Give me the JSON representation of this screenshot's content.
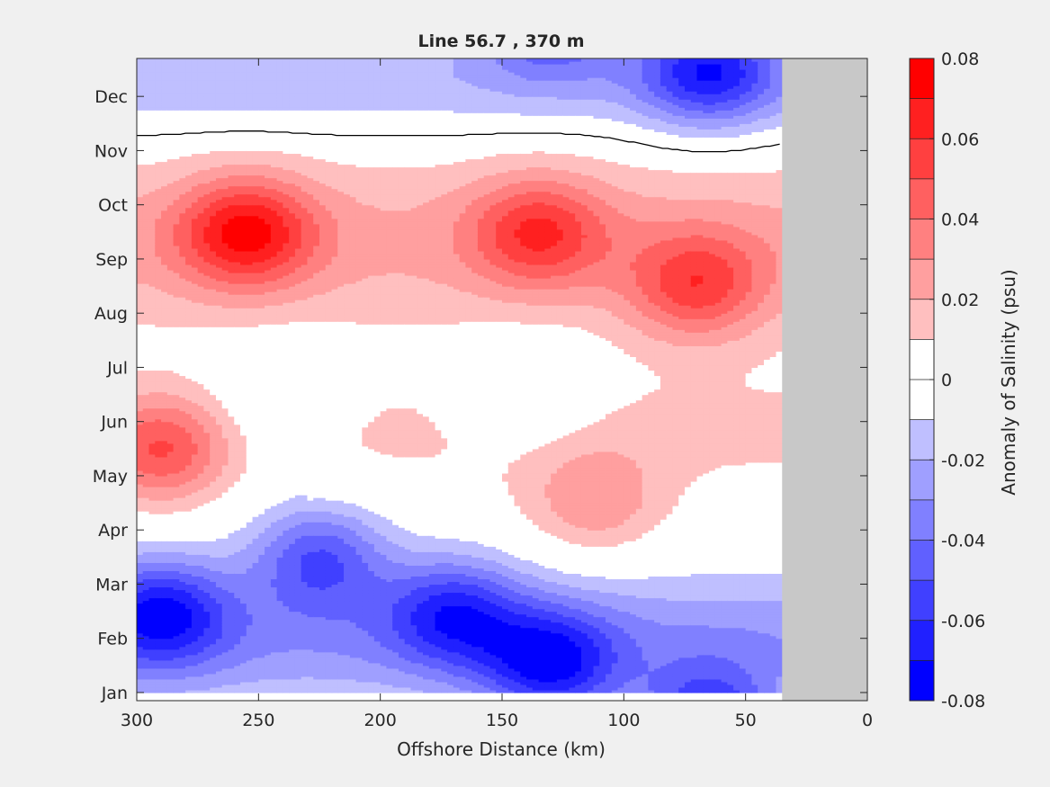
{
  "chart_data": {
    "type": "heatmap",
    "subtype": "filled-contour",
    "title": "Line 56.7 , 370 m",
    "xlabel": "Offshore Distance (km)",
    "colorbar_label": "Anomaly of Salinity (psu)",
    "x_ticks": [
      "300",
      "250",
      "200",
      "150",
      "100",
      "50",
      "0"
    ],
    "y_ticks": [
      "Jan",
      "Feb",
      "Mar",
      "Apr",
      "May",
      "Jun",
      "Jul",
      "Aug",
      "Sep",
      "Oct",
      "Nov",
      "Dec"
    ],
    "colorbar_ticks": [
      "0.08",
      "0.06",
      "0.04",
      "0.02",
      "0",
      "-0.02",
      "-0.04",
      "-0.06",
      "-0.08"
    ],
    "xlim": [
      300,
      0
    ],
    "x_reversed": true,
    "clim": [
      -0.08,
      0.08
    ],
    "contour_step": 0.01,
    "zero_contour": "black line",
    "no_data_region_km": [
      0,
      35
    ],
    "colors": {
      "negative_max": "#0000ff",
      "zero": "#ffffff",
      "positive_max": "#ff0000",
      "no_data": "#c8c8c8",
      "figure_bg": "#f0f0f0"
    },
    "features": [
      {
        "x_km": 255,
        "month": "Sep",
        "anomaly": 0.065
      },
      {
        "x_km": 135,
        "month": "Sep",
        "anomaly": 0.05
      },
      {
        "x_km": 70,
        "month": "Aug",
        "anomaly": 0.05
      },
      {
        "x_km": 290,
        "month": "May",
        "anomaly": 0.055
      },
      {
        "x_km": 112,
        "month": "Apr",
        "anomaly": 0.03
      },
      {
        "x_km": 290,
        "month": "Feb",
        "anomaly": -0.065
      },
      {
        "x_km": 225,
        "month": "Mar",
        "anomaly": -0.055
      },
      {
        "x_km": 170,
        "month": "Feb",
        "anomaly": -0.055
      },
      {
        "x_km": 130,
        "month": "Jan",
        "anomaly": -0.065
      },
      {
        "x_km": 65,
        "month": "Dec",
        "anomaly": -0.065
      },
      {
        "x_km": 140,
        "month": "Jun",
        "anomaly": -0.02
      },
      {
        "x_km": 240,
        "month": "Jun",
        "anomaly": -0.015
      }
    ]
  }
}
